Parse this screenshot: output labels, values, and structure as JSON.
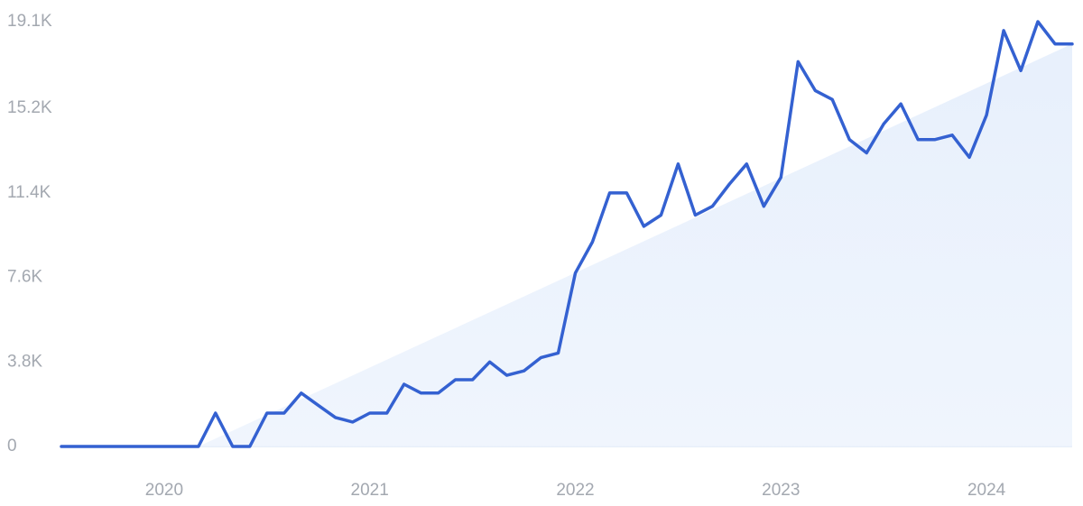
{
  "chart_data": {
    "type": "line",
    "categories": [
      null,
      null,
      null,
      null,
      null,
      null,
      "2020",
      null,
      null,
      null,
      null,
      null,
      null,
      null,
      null,
      null,
      null,
      null,
      "2021",
      null,
      null,
      null,
      null,
      null,
      null,
      null,
      null,
      null,
      null,
      null,
      "2022",
      null,
      null,
      null,
      null,
      null,
      null,
      null,
      null,
      null,
      null,
      null,
      "2023",
      null,
      null,
      null,
      null,
      null,
      null,
      null,
      null,
      null,
      null,
      null,
      "2024",
      null,
      null,
      null,
      null,
      null
    ],
    "values": [
      0,
      0,
      0,
      0,
      0,
      0,
      0,
      0,
      0,
      1500,
      0,
      0,
      1500,
      1500,
      2400,
      1850,
      1300,
      1100,
      1500,
      1500,
      2800,
      2400,
      2400,
      3000,
      3000,
      3800,
      3200,
      3400,
      4000,
      4200,
      7800,
      9200,
      11400,
      11400,
      9900,
      10400,
      12700,
      10400,
      10800,
      11800,
      12700,
      10800,
      12100,
      17300,
      16000,
      15600,
      13800,
      13200,
      14500,
      15400,
      13800,
      13800,
      14000,
      13000,
      14900,
      18700,
      16900,
      19100,
      18100,
      18100
    ],
    "color": "#3461d1",
    "trend": {
      "x": [
        8,
        59
      ],
      "values": [
        0,
        18100
      ],
      "color": "#e6effc"
    },
    "ylim": [
      0,
      19100
    ],
    "yticks": [
      0,
      {
        "value": 3800,
        "label": "3.8K"
      },
      {
        "value": 7600,
        "label": "7.6K"
      },
      {
        "value": 11400,
        "label": "11.4K"
      },
      {
        "value": 15200,
        "label": "15.2K"
      },
      {
        "value": 19100,
        "label": "19.1K"
      }
    ],
    "grid": true
  }
}
